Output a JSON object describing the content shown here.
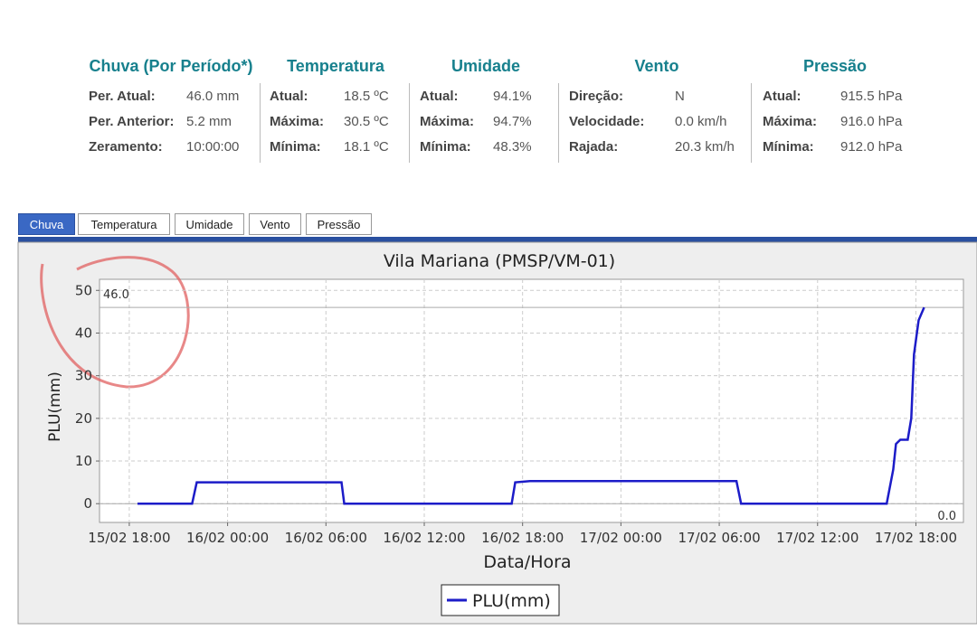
{
  "stats": [
    {
      "title": "Chuva (Por Período*)",
      "rows": [
        [
          "Per. Atual:",
          "46.0 mm"
        ],
        [
          "Per. Anterior:",
          "5.2 mm"
        ],
        [
          "Zeramento:",
          "10:00:00"
        ]
      ]
    },
    {
      "title": "Temperatura",
      "rows": [
        [
          "Atual:",
          "18.5 ºC"
        ],
        [
          "Máxima:",
          "30.5 ºC"
        ],
        [
          "Mínima:",
          "18.1 ºC"
        ]
      ]
    },
    {
      "title": "Umidade",
      "rows": [
        [
          "Atual:",
          "94.1%"
        ],
        [
          "Máxima:",
          "94.7%"
        ],
        [
          "Mínima:",
          "48.3%"
        ]
      ]
    },
    {
      "title": "Vento",
      "rows": [
        [
          "Direção:",
          "N"
        ],
        [
          "Velocidade:",
          "0.0 km/h"
        ],
        [
          "Rajada:",
          "20.3 km/h"
        ]
      ]
    },
    {
      "title": "Pressão",
      "rows": [
        [
          "Atual:",
          "915.5 hPa"
        ],
        [
          "Máxima:",
          "916.0 hPa"
        ],
        [
          "Mínima:",
          "912.0 hPa"
        ]
      ]
    }
  ],
  "tabs": [
    "Chuva",
    "Temperatura",
    "Umidade",
    "Vento",
    "Pressão"
  ],
  "chart_data": {
    "type": "line",
    "title": "Vila Mariana (PMSP/VM-01)",
    "x_label": "Data/Hora",
    "y_label": "PLU(mm)",
    "x": [
      "15/02 18:30",
      "15/02 21:50",
      "15/02 22:07",
      "16/02 06:57",
      "16/02 07:07",
      "16/02 17:20",
      "16/02 17:33",
      "16/02 18:27",
      "17/02 07:03",
      "17/02 07:20",
      "17/02 16:13",
      "17/02 16:37",
      "17/02 16:47",
      "17/02 17:03",
      "17/02 17:30",
      "17/02 17:43",
      "17/02 17:53",
      "17/02 18:10",
      "17/02 18:30"
    ],
    "series": [
      {
        "name": "PLU(mm)",
        "color": "#1c1cc8",
        "values": [
          0,
          0,
          5,
          5,
          0,
          0,
          5,
          5.3,
          5.3,
          0,
          0,
          8,
          14,
          15,
          15,
          20,
          35,
          43,
          46
        ]
      }
    ],
    "xlim": [
      "15/02 16:11",
      "17/02 20:54"
    ],
    "xticks": [
      "15/02 18:00",
      "16/02 00:00",
      "16/02 06:00",
      "16/02 12:00",
      "16/02 18:00",
      "17/02 00:00",
      "17/02 06:00",
      "17/02 12:00",
      "17/02 18:00"
    ],
    "ylim": [
      -4.4,
      52.6
    ],
    "yticks": [
      0,
      10,
      20,
      30,
      40,
      50
    ],
    "grid": true,
    "annotations": [
      {
        "value": 46,
        "label": "46.0"
      },
      {
        "value": 0,
        "label": "0.0"
      }
    ]
  }
}
